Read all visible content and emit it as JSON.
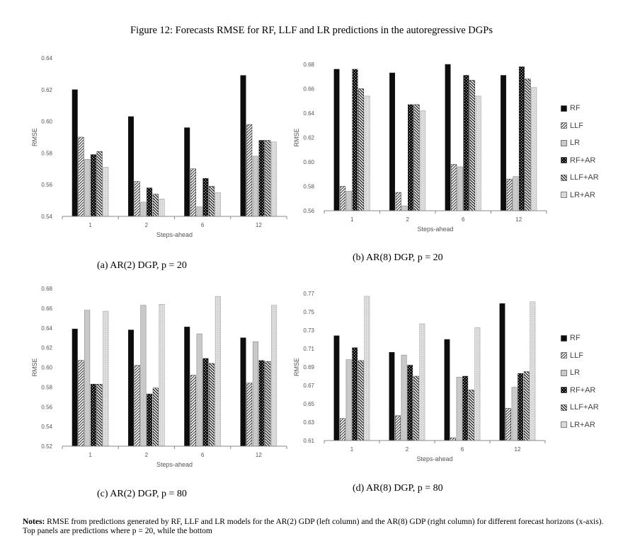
{
  "figure_title": "Figure 12: Forecasts RMSE for RF, LLF and LR predictions in the autoregressive DGPs",
  "legend_labels": [
    "RF",
    "LLF",
    "LR",
    "RF+AR",
    "LLF+AR",
    "LR+AR"
  ],
  "captions": {
    "a": "(a) AR(2) DGP, p = 20",
    "b": "(b) AR(8) DGP, p = 20",
    "c": "(c) AR(2) DGP, p = 80",
    "d": "(d) AR(8) DGP, p = 80"
  },
  "notes": {
    "label": "Notes:",
    "text": "RMSE from predictions generated by RF, LLF and LR models for the AR(2) GDP (left column) and the AR(8) GDP (right column) for different forecast horizons (x-axis). Top panels are predictions where p = 20, while the bottom"
  },
  "chart_data": [
    {
      "type": "bar",
      "panel": "a",
      "categories": [
        "1",
        "2",
        "6",
        "12"
      ],
      "xlabel": "Steps-ahead",
      "ylabel": "RMSE",
      "ylim": [
        0.54,
        0.64
      ],
      "yticks": [
        "0.54",
        "0.56",
        "0.58",
        "0.60",
        "0.62",
        "0.64"
      ],
      "series": [
        {
          "name": "RF",
          "values": [
            0.62,
            0.603,
            0.596,
            0.629
          ]
        },
        {
          "name": "LLF",
          "values": [
            0.59,
            0.562,
            0.57,
            0.598
          ]
        },
        {
          "name": "LR",
          "values": [
            0.576,
            0.549,
            0.546,
            0.578
          ]
        },
        {
          "name": "RF+AR",
          "values": [
            0.579,
            0.558,
            0.564,
            0.588
          ]
        },
        {
          "name": "LLF+AR",
          "values": [
            0.581,
            0.554,
            0.559,
            0.588
          ]
        },
        {
          "name": "LR+AR",
          "values": [
            0.571,
            0.551,
            0.555,
            0.587
          ]
        }
      ]
    },
    {
      "type": "bar",
      "panel": "b",
      "categories": [
        "1",
        "2",
        "6",
        "12"
      ],
      "xlabel": "Steps-ahead",
      "ylabel": "RMSE",
      "ylim": [
        0.56,
        0.68
      ],
      "yticks": [
        "0.56",
        "0.58",
        "0.60",
        "0.62",
        "0.64",
        "0.66",
        "0.68"
      ],
      "legend": "right",
      "series": [
        {
          "name": "RF",
          "values": [
            0.676,
            0.673,
            0.68,
            0.671
          ]
        },
        {
          "name": "LLF",
          "values": [
            0.58,
            0.575,
            0.598,
            0.586
          ]
        },
        {
          "name": "LR",
          "values": [
            0.576,
            0.564,
            0.596,
            0.588
          ]
        },
        {
          "name": "RF+AR",
          "values": [
            0.676,
            0.647,
            0.671,
            0.678
          ]
        },
        {
          "name": "LLF+AR",
          "values": [
            0.66,
            0.647,
            0.667,
            0.668
          ]
        },
        {
          "name": "LR+AR",
          "values": [
            0.654,
            0.642,
            0.654,
            0.661
          ]
        }
      ]
    },
    {
      "type": "bar",
      "panel": "c",
      "categories": [
        "1",
        "2",
        "6",
        "12"
      ],
      "xlabel": "Steps-ahead",
      "ylabel": "RMSE",
      "ylim": [
        0.52,
        0.68
      ],
      "yticks": [
        "0.52",
        "0.54",
        "0.56",
        "0.58",
        "0.60",
        "0.62",
        "0.64",
        "0.66",
        "0.68"
      ],
      "series": [
        {
          "name": "RF",
          "values": [
            0.639,
            0.638,
            0.641,
            0.63
          ]
        },
        {
          "name": "LLF",
          "values": [
            0.607,
            0.602,
            0.592,
            0.584
          ]
        },
        {
          "name": "LR",
          "values": [
            0.658,
            0.663,
            0.634,
            0.626
          ]
        },
        {
          "name": "RF+AR",
          "values": [
            0.583,
            0.573,
            0.609,
            0.607
          ]
        },
        {
          "name": "LLF+AR",
          "values": [
            0.583,
            0.579,
            0.604,
            0.606
          ]
        },
        {
          "name": "LR+AR",
          "values": [
            0.657,
            0.664,
            0.672,
            0.663
          ]
        }
      ]
    },
    {
      "type": "bar",
      "panel": "d",
      "categories": [
        "1",
        "2",
        "6",
        "12"
      ],
      "xlabel": "Steps-ahead",
      "ylabel": "RMSE",
      "ylim": [
        0.61,
        0.77
      ],
      "yticks": [
        "0.61",
        "0.63",
        "0.65",
        "0.67",
        "0.69",
        "0.71",
        "0.73",
        "0.75",
        "0.77"
      ],
      "legend": "right",
      "series": [
        {
          "name": "RF",
          "values": [
            0.724,
            0.706,
            0.72,
            0.759
          ]
        },
        {
          "name": "LLF",
          "values": [
            0.634,
            0.637,
            0.613,
            0.645
          ]
        },
        {
          "name": "LR",
          "values": [
            0.698,
            0.703,
            0.679,
            0.668
          ]
        },
        {
          "name": "RF+AR",
          "values": [
            0.711,
            0.692,
            0.68,
            0.683
          ]
        },
        {
          "name": "LLF+AR",
          "values": [
            0.697,
            0.68,
            0.665,
            0.685
          ]
        },
        {
          "name": "LR+AR",
          "values": [
            0.767,
            0.737,
            0.733,
            0.761
          ]
        }
      ]
    }
  ]
}
